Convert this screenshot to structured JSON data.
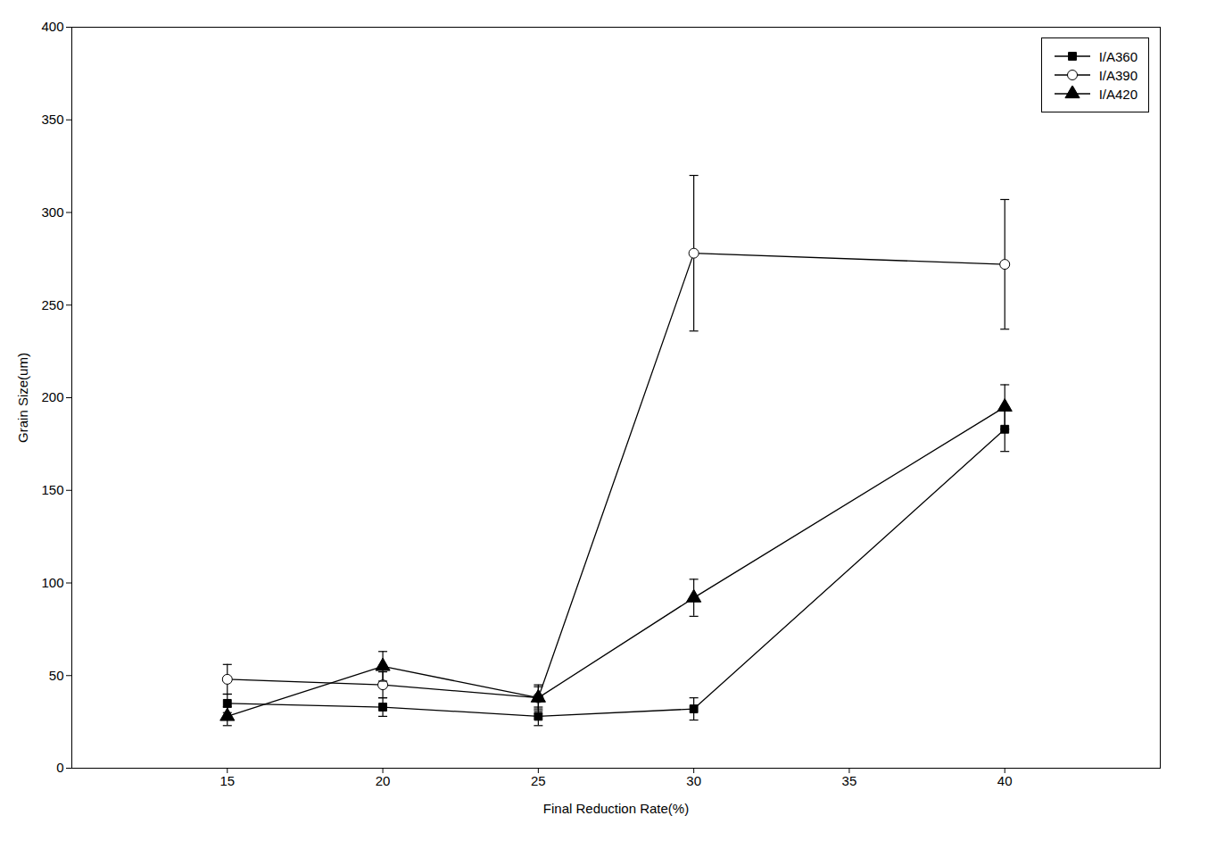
{
  "chart_data": {
    "type": "line",
    "x": [
      15,
      20,
      25,
      30,
      40
    ],
    "series": [
      {
        "name": "I/A360",
        "color": "black",
        "marker": "square",
        "line_style": "solid",
        "values": [
          35,
          33,
          28,
          32,
          183
        ],
        "yerr": [
          5,
          5,
          5,
          6,
          12
        ]
      },
      {
        "name": "I/A390",
        "color": "black",
        "marker": "open-circle",
        "line_style": "solid",
        "values": [
          48,
          45,
          38,
          278,
          272
        ],
        "yerr": [
          8,
          7,
          7,
          42,
          35
        ]
      },
      {
        "name": "I/A420",
        "color": "black",
        "marker": "triangle",
        "line_style": "solid",
        "values": [
          28,
          55,
          38,
          92,
          195
        ],
        "yerr": [
          5,
          8,
          6,
          10,
          12
        ]
      }
    ],
    "xlabel": "Final Reduction Rate(%)",
    "ylabel": "Grain Size(um)",
    "xlim": [
      10,
      45
    ],
    "ylim": [
      0,
      400
    ],
    "xticks": [
      15,
      20,
      25,
      30,
      35,
      40
    ],
    "yticks": [
      0,
      50,
      100,
      150,
      200,
      250,
      300,
      350,
      400
    ],
    "grid": false,
    "legend": "upper right"
  }
}
